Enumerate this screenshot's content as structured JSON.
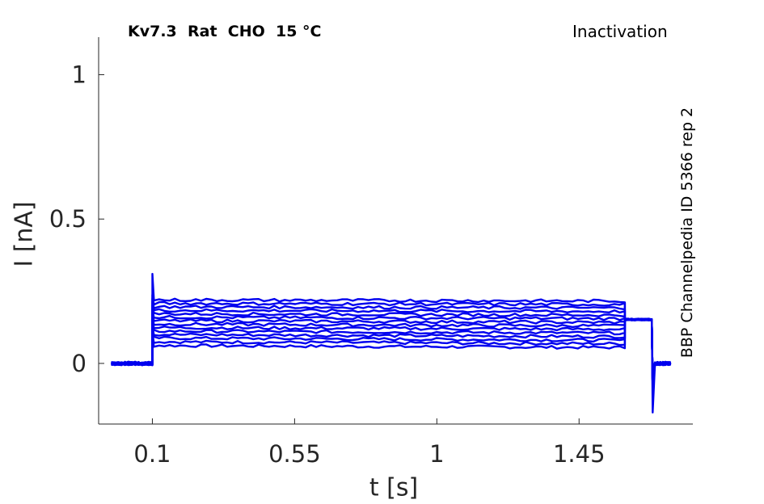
{
  "chart_data": {
    "type": "line",
    "title": "Kv7.3  Rat  CHO  15 °C",
    "protocol": "Inactivation",
    "side_label": "BBP Channelpedia ID 5366 rep 2",
    "xlabel": "t [s]",
    "ylabel": "I [nA]",
    "xlim": [
      -0.07,
      1.81
    ],
    "ylim": [
      -0.21,
      1.13
    ],
    "xticks": [
      0.1,
      0.55,
      1,
      1.45
    ],
    "xtick_labels": [
      "0.1",
      "0.55",
      "1",
      "1.45"
    ],
    "yticks": [
      0,
      0.5,
      1
    ],
    "ytick_labels": [
      "0",
      "0.5",
      "1"
    ],
    "grid": false,
    "line_color": "#0000ee",
    "protocol_times": {
      "start": -0.03,
      "step_on": 0.1,
      "step_off": 1.595,
      "tail_end": 1.68,
      "end": 1.74
    },
    "series_baseline": 0.0,
    "tail_current": 0.152,
    "step_on_peak": 0.31,
    "tail_off_trough": -0.17,
    "series": [
      {
        "values": [
          0.062,
          0.055
        ]
      },
      {
        "values": [
          0.075,
          0.068
        ]
      },
      {
        "values": [
          0.088,
          0.08
        ]
      },
      {
        "values": [
          0.1,
          0.093
        ]
      },
      {
        "values": [
          0.112,
          0.105
        ]
      },
      {
        "values": [
          0.124,
          0.118
        ]
      },
      {
        "values": [
          0.136,
          0.13
        ]
      },
      {
        "values": [
          0.148,
          0.142
        ]
      },
      {
        "values": [
          0.16,
          0.155
        ]
      },
      {
        "values": [
          0.172,
          0.167
        ]
      },
      {
        "values": [
          0.184,
          0.18
        ]
      },
      {
        "values": [
          0.196,
          0.192
        ]
      },
      {
        "values": [
          0.208,
          0.204
        ]
      },
      {
        "values": [
          0.22,
          0.216
        ]
      }
    ]
  }
}
